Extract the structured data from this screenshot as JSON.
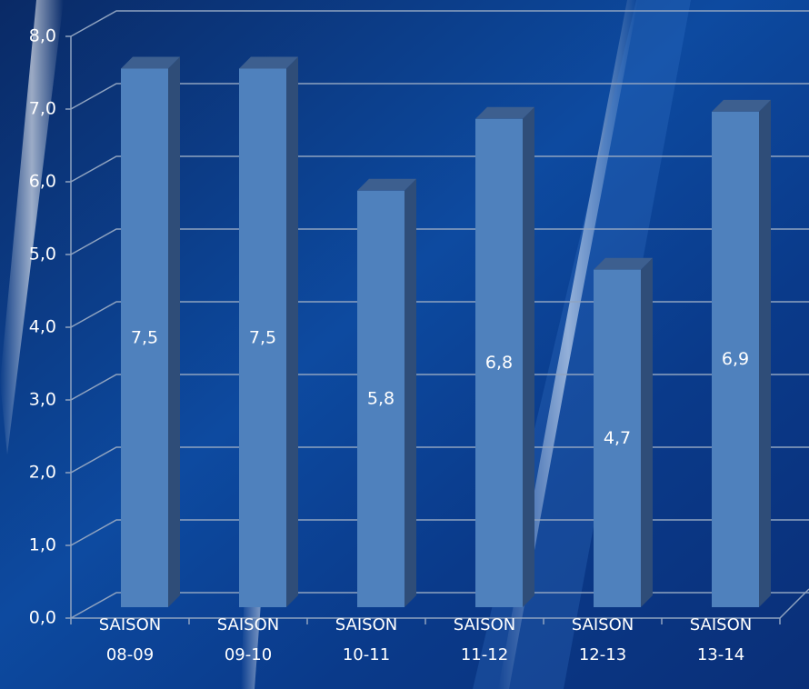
{
  "chart_data": {
    "type": "bar",
    "categories": [
      "SAISON 08-09",
      "SAISON 09-10",
      "SAISON 10-11",
      "SAISON 11-12",
      "SAISON 12-13",
      "SAISON 13-14"
    ],
    "values": [
      7.5,
      7.5,
      5.8,
      6.8,
      4.7,
      6.9
    ],
    "value_labels": [
      "7,5",
      "7,5",
      "5,8",
      "6,8",
      "4,7",
      "6,9"
    ],
    "color": "#4f81bd",
    "ylim": [
      0,
      8
    ],
    "yticks": [
      {
        "value": 0,
        "label": "0,0"
      },
      {
        "value": 1,
        "label": "1,0"
      },
      {
        "value": 2,
        "label": "2,0"
      },
      {
        "value": 3,
        "label": "3,0"
      },
      {
        "value": 4,
        "label": "4,0"
      },
      {
        "value": 5,
        "label": "5,0"
      },
      {
        "value": 6,
        "label": "6,0"
      },
      {
        "value": 7,
        "label": "7,0"
      },
      {
        "value": 8,
        "label": "8,0"
      }
    ],
    "grid": true
  }
}
